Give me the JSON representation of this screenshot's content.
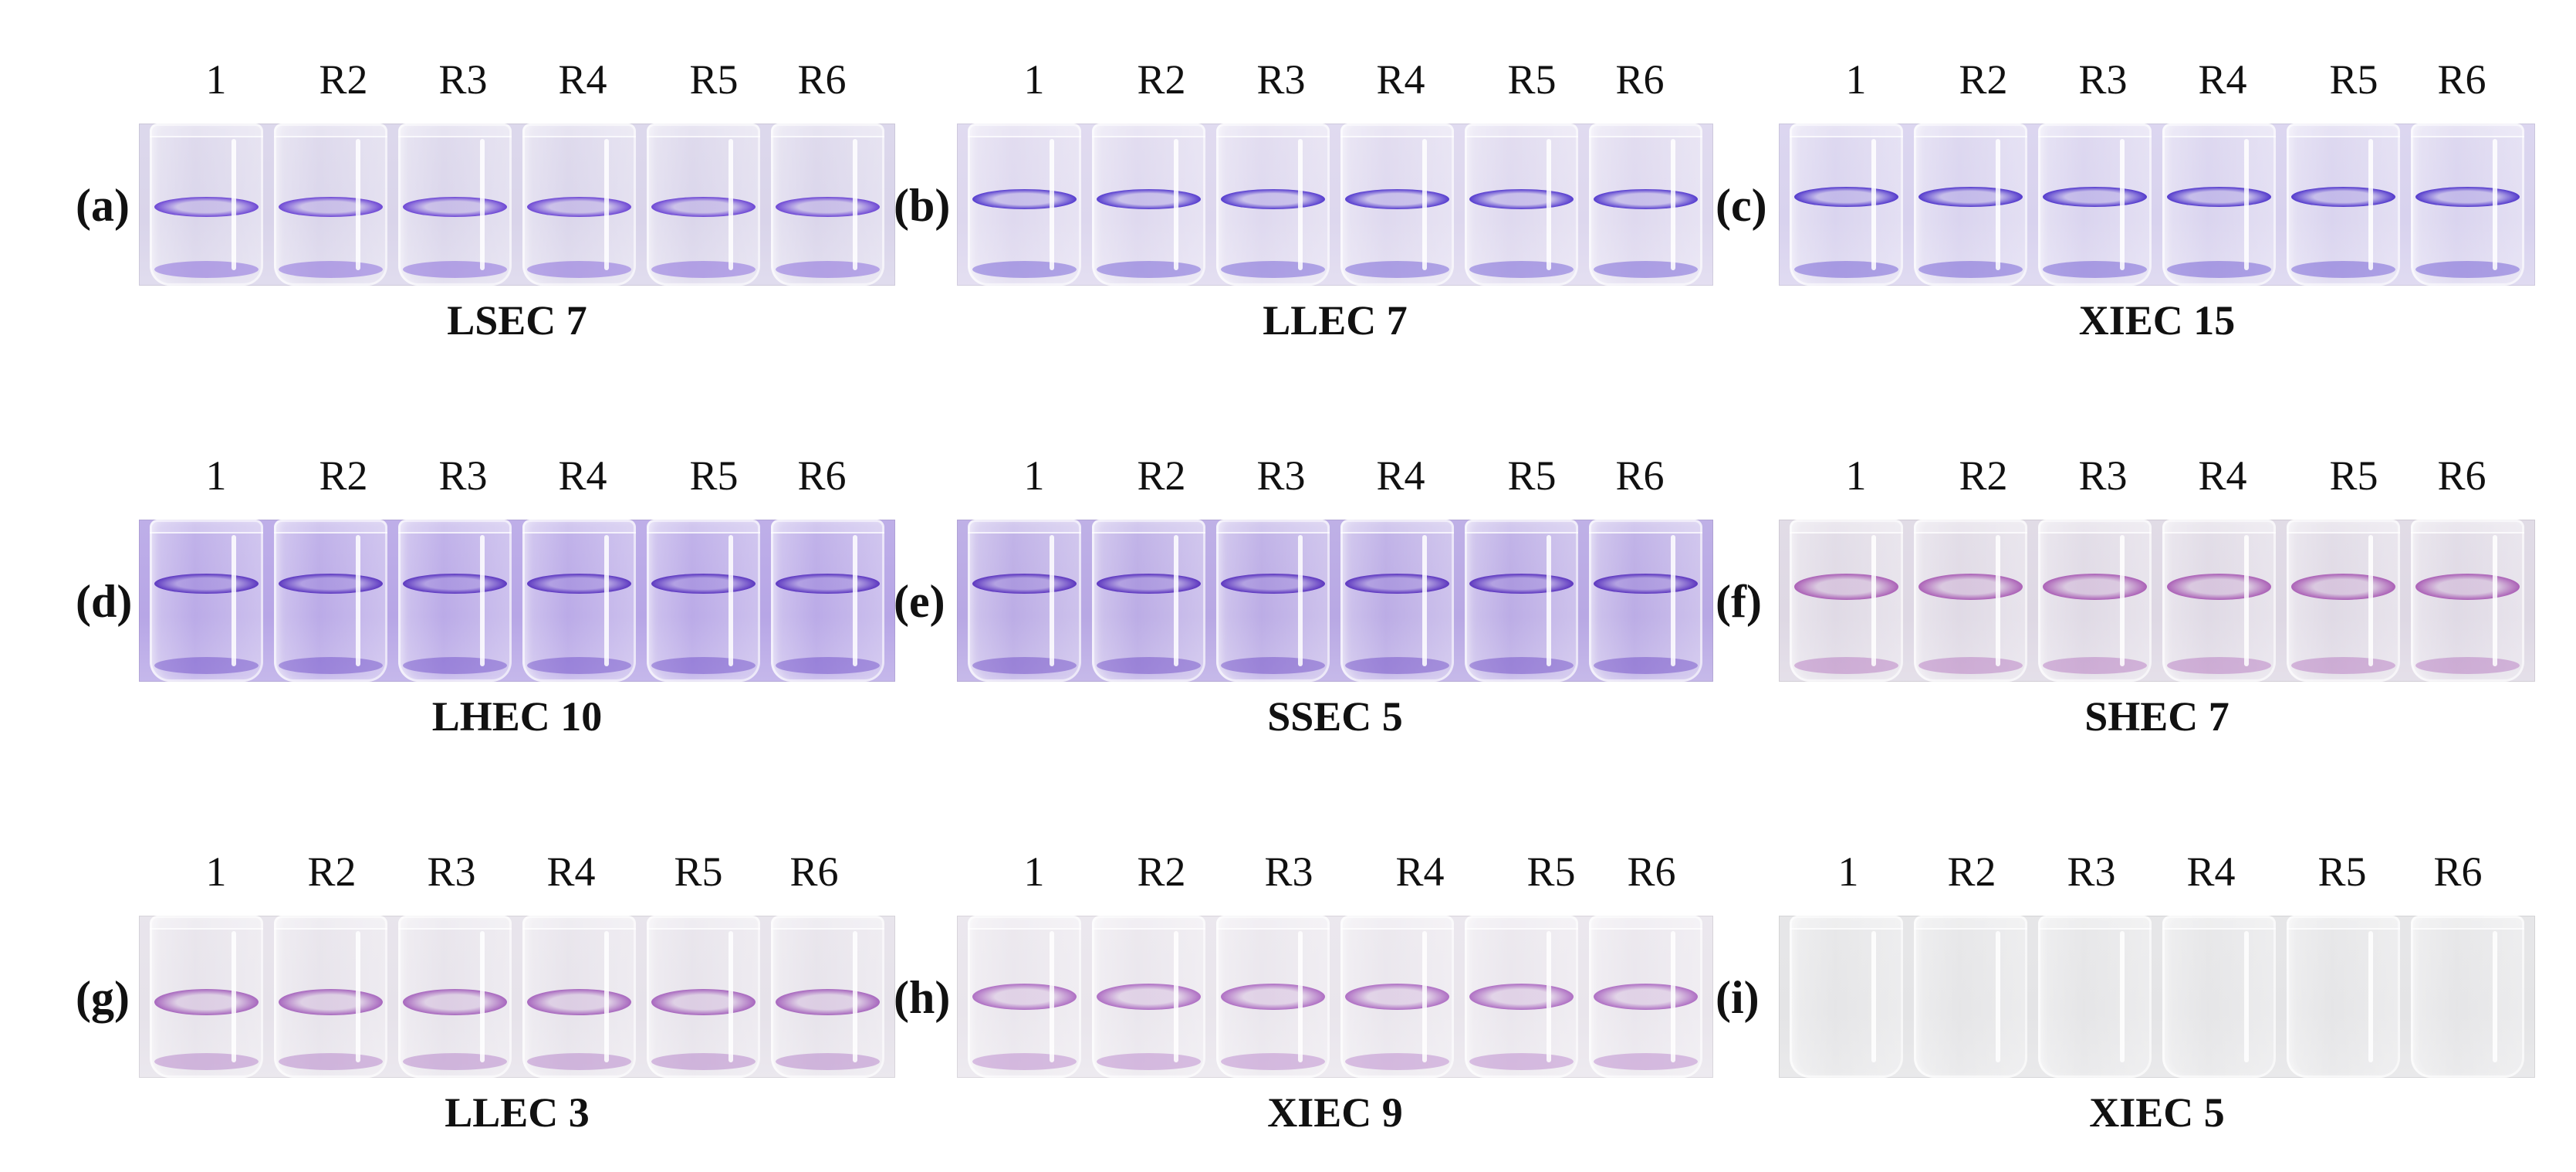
{
  "tube_labels": [
    "1",
    "R2",
    "R3",
    "R4",
    "R5",
    "R6"
  ],
  "panels": [
    {
      "letter": "(a)",
      "caption": "LSEC 7",
      "strip_color": "#d9d4ea",
      "ring_color": "#5a2fd0",
      "stain": "purple"
    },
    {
      "letter": "(b)",
      "caption": "LLEC 7",
      "strip_color": "#ddd7ee",
      "ring_color": "#3f22c9",
      "stain": "purple"
    },
    {
      "letter": "(c)",
      "caption": "XIEC 15",
      "strip_color": "#d8d2ee",
      "ring_color": "#3c1fc6",
      "stain": "purple"
    },
    {
      "letter": "(d)",
      "caption": "LHEC 10",
      "strip_color": "#b7a6e6",
      "ring_color": "#4a22b9",
      "stain": "purple"
    },
    {
      "letter": "(e)",
      "caption": "SSEC 5",
      "strip_color": "#b8a8e4",
      "ring_color": "#4a20b8",
      "stain": "purple"
    },
    {
      "letter": "(f)",
      "caption": "SHEC 7",
      "strip_color": "#ded8e4",
      "ring_color": "#a14cae",
      "stain": "magenta"
    },
    {
      "letter": "(g)",
      "caption": "LLEC 3",
      "strip_color": "#e6e2ea",
      "ring_color": "#9c52b6",
      "stain": "magenta"
    },
    {
      "letter": "(h)",
      "caption": "XIEC 9",
      "strip_color": "#e9e5ec",
      "ring_color": "#a45bbc",
      "stain": "magenta"
    },
    {
      "letter": "(i)",
      "caption": "XIEC 5",
      "strip_color": "#e4e4e6",
      "ring_color": "#d5d5db",
      "stain": "none"
    }
  ]
}
